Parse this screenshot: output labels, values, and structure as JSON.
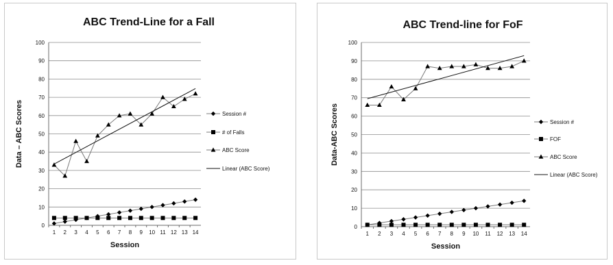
{
  "chart_data": [
    {
      "type": "line",
      "title": "ABC Trend-Line for a Fall",
      "xlabel": "Session",
      "ylabel": "Data – ABC Scores",
      "ylim": [
        0,
        100
      ],
      "yticks": [
        0,
        10,
        20,
        30,
        40,
        50,
        60,
        70,
        80,
        90,
        100
      ],
      "categories": [
        "1",
        "2",
        "3",
        "4",
        "5",
        "6",
        "7",
        "8",
        "9",
        "10",
        "11",
        "12",
        "13",
        "14"
      ],
      "grid": "horizontal",
      "legend_position": "right",
      "series": [
        {
          "name": "Session #",
          "marker": "diamond",
          "values": [
            1,
            2,
            3,
            4,
            5,
            6,
            7,
            8,
            9,
            10,
            11,
            12,
            13,
            14
          ]
        },
        {
          "name": "# of Falls",
          "marker": "square",
          "values": [
            4,
            4,
            4,
            4,
            4,
            4,
            4,
            4,
            4,
            4,
            4,
            4,
            4,
            4
          ]
        },
        {
          "name": "ABC Score",
          "marker": "triangle",
          "values": [
            33,
            27,
            46,
            35,
            49,
            55,
            60,
            61,
            55,
            61,
            70,
            65,
            69,
            72
          ]
        },
        {
          "name": "Linear (ABC Score)",
          "marker": "none",
          "trend": "linear",
          "of": "ABC Score"
        }
      ]
    },
    {
      "type": "line",
      "title": "ABC Trend-line for FoF",
      "xlabel": "Session",
      "ylabel": "Data-ABC Scores",
      "ylim": [
        0,
        100
      ],
      "yticks": [
        0,
        10,
        20,
        30,
        40,
        50,
        60,
        70,
        80,
        90,
        100
      ],
      "categories": [
        "1",
        "2",
        "3",
        "4",
        "5",
        "6",
        "7",
        "8",
        "9",
        "10",
        "11",
        "12",
        "13",
        "14"
      ],
      "grid": "horizontal",
      "legend_position": "right",
      "series": [
        {
          "name": "Session #",
          "marker": "diamond",
          "values": [
            1,
            2,
            3,
            4,
            5,
            6,
            7,
            8,
            9,
            10,
            11,
            12,
            13,
            14
          ]
        },
        {
          "name": "FOF",
          "marker": "square",
          "values": [
            1,
            1,
            1,
            1,
            1,
            1,
            1,
            1,
            1,
            1,
            1,
            1,
            1,
            1
          ]
        },
        {
          "name": "ABC Score",
          "marker": "triangle",
          "values": [
            66,
            66,
            76,
            69,
            75,
            87,
            86,
            87,
            87,
            88,
            86,
            86,
            87,
            90
          ]
        },
        {
          "name": "Linear (ABC Score)",
          "marker": "none",
          "trend": "linear",
          "of": "ABC Score"
        }
      ]
    }
  ]
}
